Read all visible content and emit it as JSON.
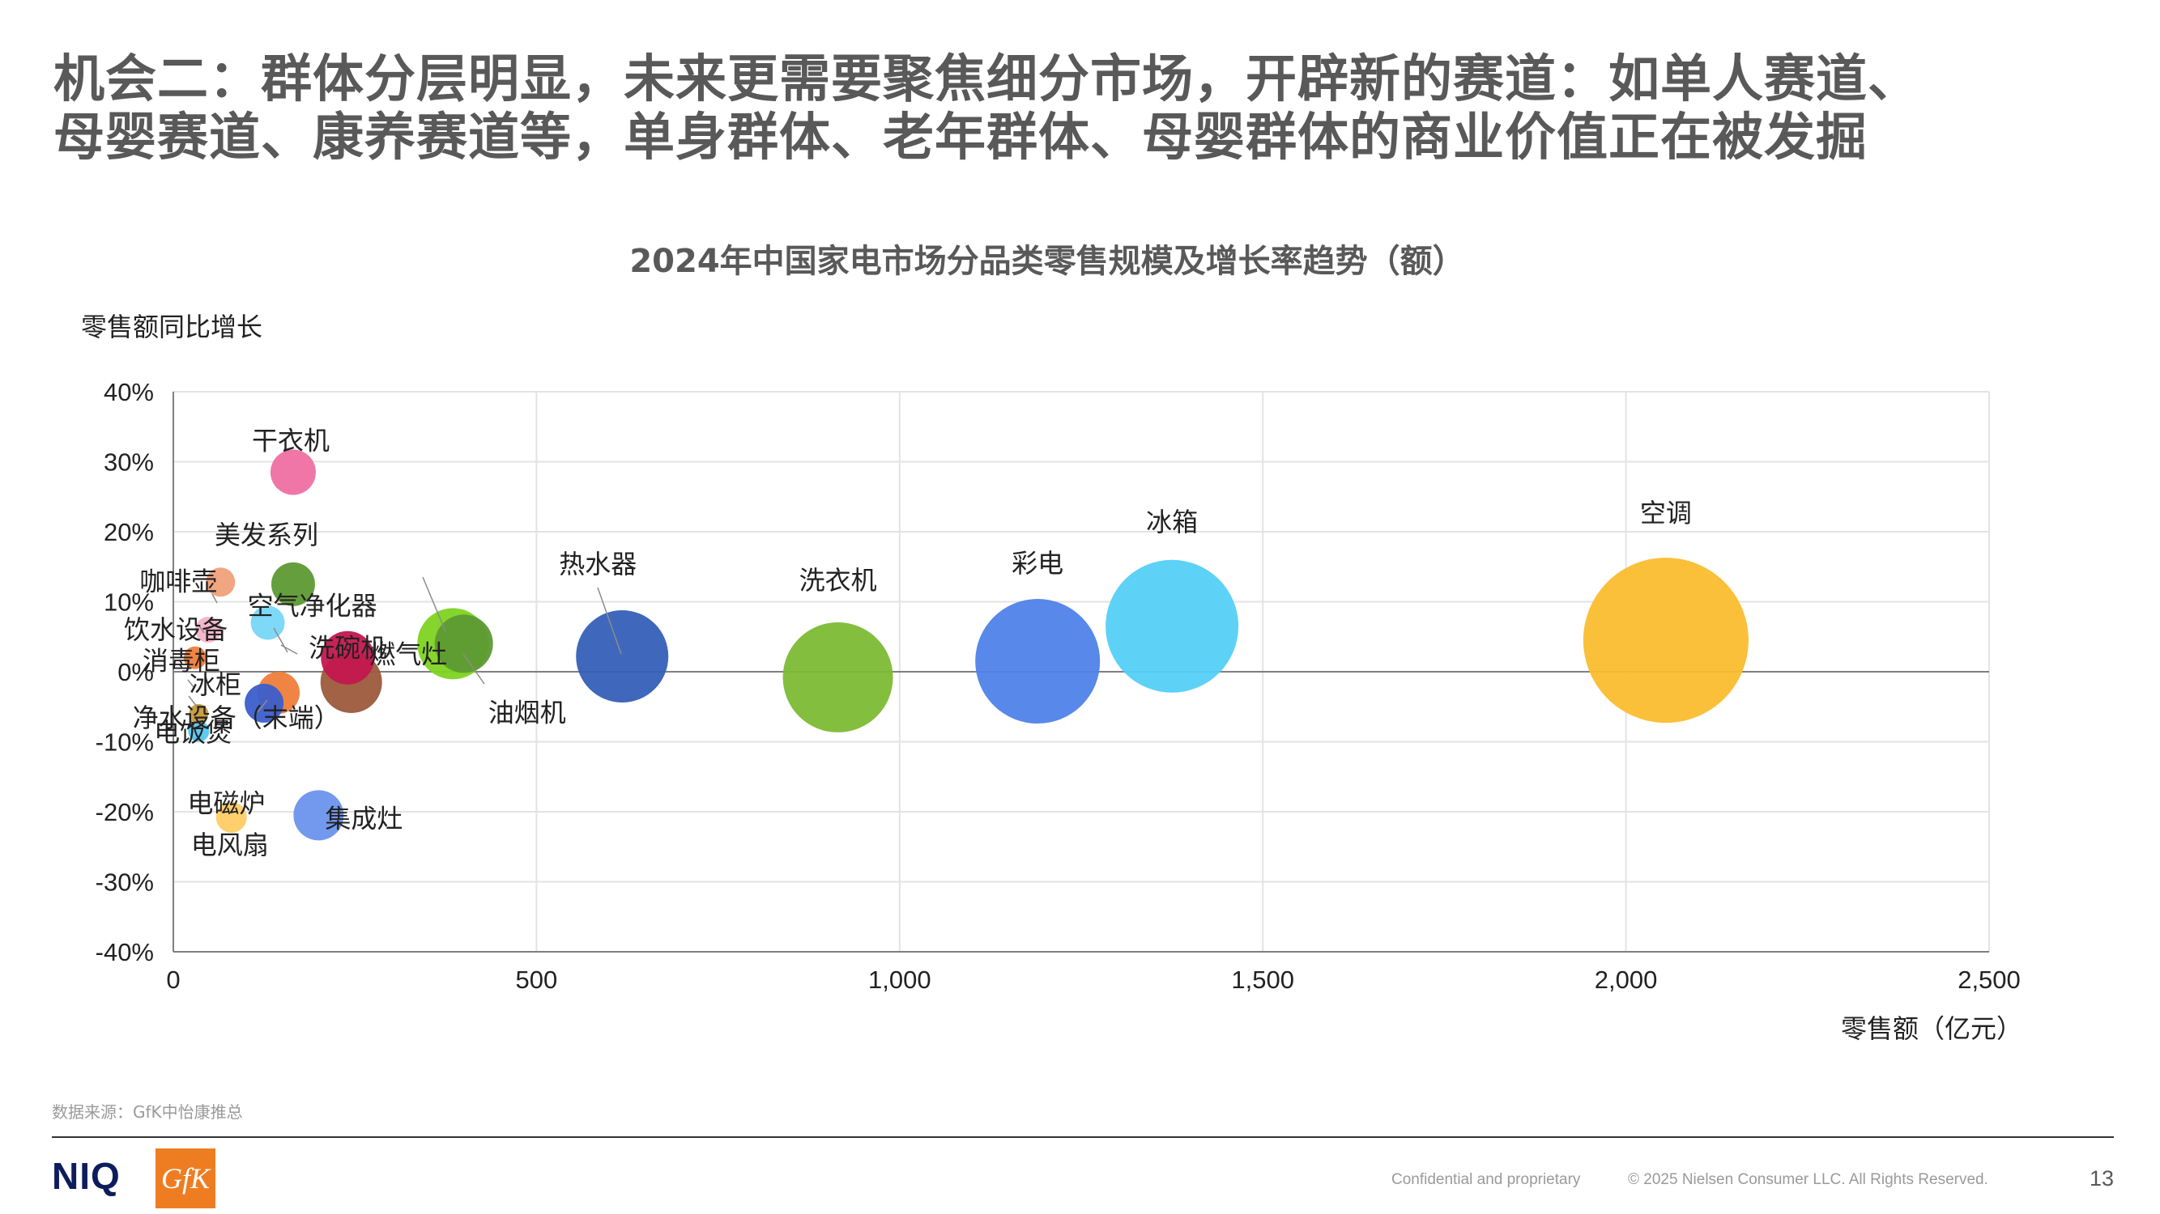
{
  "page": {
    "title_line1": "机会二：群体分层明显，未来更需要聚焦细分市场，开辟新的赛道：如单人赛道、",
    "title_line2": "母婴赛道、康养赛道等，单身群体、老年群体、母婴群体的商业价值正在被发掘",
    "source": "数据来源：GfK中怡康推总",
    "footer_confidential": "Confidential and proprietary",
    "footer_copyright": "© 2025 Nielsen Consumer LLC. All Rights Reserved.",
    "page_number": "13",
    "logo_niq": "NIQ",
    "logo_gfk": "GfK"
  },
  "chart_data": {
    "type": "bubble",
    "title": "2024年中国家电市场分品类零售规模及增长率趋势（额）",
    "xlabel": "零售额（亿元）",
    "ylabel": "零售额同比增长",
    "xlim": [
      0,
      2500
    ],
    "ylim": [
      -40,
      40
    ],
    "x_ticks": [
      "0",
      "500",
      "1,000",
      "1,500",
      "2,000",
      "2,500"
    ],
    "y_ticks": [
      "40%",
      "30%",
      "20%",
      "10%",
      "0%",
      "-10%",
      "-20%",
      "-30%",
      "-40%"
    ],
    "grid": true,
    "points": [
      {
        "name": "空调",
        "x": 2055,
        "y": 4.5,
        "color": "#fbbd2e"
      },
      {
        "name": "冰箱",
        "x": 1375,
        "y": 6.5,
        "color": "#54d0f5"
      },
      {
        "name": "彩电",
        "x": 1190,
        "y": 1.5,
        "color": "#4f82e8"
      },
      {
        "name": "洗衣机",
        "x": 915,
        "y": -0.8,
        "color": "#7dbb34"
      },
      {
        "name": "热水器",
        "x": 618,
        "y": 2.2,
        "color": "#3560b8"
      },
      {
        "name": "油烟机",
        "x": 400,
        "y": 4.0,
        "color": "#5d9a33"
      },
      {
        "name": "燃气灶",
        "x": 385,
        "y": 4.0,
        "color": "#7ed321"
      },
      {
        "name": "洗碗机",
        "x": 240,
        "y": 2.0,
        "color": "#c4174f"
      },
      {
        "name": "净水设备（末端）",
        "x": 245,
        "y": -1.5,
        "color": "#9c5a3c"
      },
      {
        "name": "集成灶",
        "x": 200,
        "y": -20.5,
        "color": "#6a94ec"
      },
      {
        "name": "干衣机",
        "x": 165,
        "y": 28.5,
        "color": "#f06fa3"
      },
      {
        "name": "美发系列",
        "x": 165,
        "y": 12.5,
        "color": "#5d9a33"
      },
      {
        "name": "空气净化器",
        "x": 130,
        "y": 7.0,
        "color": "#77d6f7"
      },
      {
        "name": "冰柜",
        "x": 145,
        "y": -3.0,
        "color": "#ee7d3a"
      },
      {
        "name": "电饭煲",
        "x": 125,
        "y": -4.5,
        "color": "#3a5ecb"
      },
      {
        "name": "咖啡壶",
        "x": 65,
        "y": 12.8,
        "color": "#f0a07a"
      },
      {
        "name": "饮水设备",
        "x": 48,
        "y": 6.0,
        "color": "#f5b3c8"
      },
      {
        "name": "消毒柜",
        "x": 30,
        "y": 2.0,
        "color": "#ee7d3a"
      },
      {
        "name": "电磁炉",
        "x": 35,
        "y": -8.5,
        "color": "#54c8ee"
      },
      {
        "name": "电风扇",
        "x": 80,
        "y": -20.8,
        "color": "#ffcc66"
      },
      {
        "name": "电磁炉_2",
        "x": 35,
        "y": -6.0,
        "color": "#c79a3a"
      }
    ]
  }
}
